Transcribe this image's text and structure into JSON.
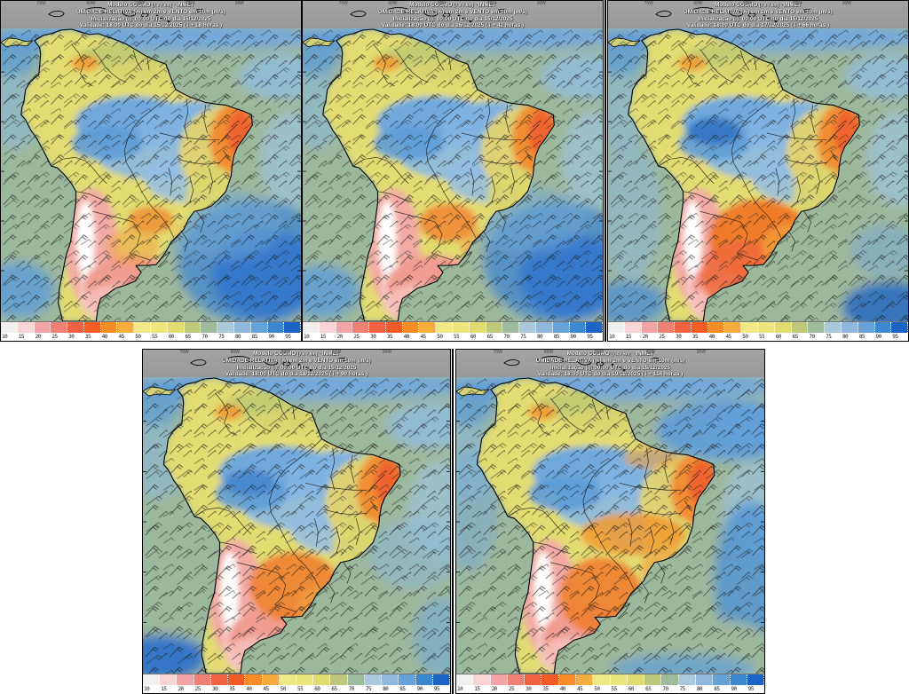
{
  "model_header": {
    "model_line_prefix": "Modelo COSMO",
    "model_line_resolution": "[7 x 7 km]",
    "model_line_suffix": "- INMET",
    "variable_line": "UMIDADE RELATIVA (%) em 2m e VENTO em 10m (m/s)",
    "initialization_line": "Inicialização (i): 00:00 UTC do dia 15/12/2025"
  },
  "panels": [
    {
      "id": "panel-1",
      "validity_line": "Validade: 18:00 UTC do dia 15/12/2025 ( i + 18 horas )",
      "valid_date": "15/12/2025",
      "valid_time_utc": "18:00",
      "lead_hours": 18,
      "variant": "v1"
    },
    {
      "id": "panel-2",
      "validity_line": "Validade: 18:00 UTC do dia 16/12/2025 ( i + 42 horas )",
      "valid_date": "16/12/2025",
      "valid_time_utc": "18:00",
      "lead_hours": 42,
      "variant": "v2"
    },
    {
      "id": "panel-3",
      "validity_line": "Validade: 18:00 UTC do dia 17/12/2025 ( i + 66 horas )",
      "valid_date": "17/12/2025",
      "valid_time_utc": "18:00",
      "lead_hours": 66,
      "variant": "v3"
    },
    {
      "id": "panel-4",
      "validity_line": "Validade: 18:00 UTC do dia 18/12/2025 ( i + 90 horas )",
      "valid_date": "18/12/2025",
      "valid_time_utc": "18:00",
      "lead_hours": 90,
      "variant": "v4"
    },
    {
      "id": "panel-5",
      "validity_line": "Validade: 18:00 UTC do dia 19/12/2025 ( i + 114 horas )",
      "valid_date": "19/12/2025",
      "valid_time_utc": "18:00",
      "lead_hours": 114,
      "variant": "v5"
    }
  ],
  "colorbar": {
    "unit": "%",
    "ticks": [
      "10",
      "15",
      "20",
      "25",
      "30",
      "35",
      "40",
      "45",
      "50",
      "55",
      "60",
      "65",
      "70",
      "75",
      "80",
      "85",
      "90",
      "95"
    ],
    "colors": [
      "#f0f0ee",
      "#f8d4d6",
      "#f2a4a6",
      "#ef8074",
      "#f16242",
      "#f45c26",
      "#f98e28",
      "#f5ae3e",
      "#f0e886",
      "#ece67c",
      "#e0dc70",
      "#bdc87a",
      "#9dbc9e",
      "#a9c9da",
      "#8fb8dc",
      "#66a2d8",
      "#3c88d0",
      "#1b64c6"
    ]
  },
  "map_labels": {
    "longitude_ticks": [
      "70W",
      "60W",
      "50W",
      "40W",
      "30W"
    ]
  },
  "map_colors": {
    "ocean_base": "#9cb89c",
    "humid_blue": "#6fa8dc",
    "very_humid_navy": "#1a55b8",
    "land_base_yellow": "#e2dc72",
    "dry_orange": "#f08530",
    "very_dry_red": "#ee5f30",
    "arid_white": "#ffffff",
    "arid_pink": "#f2aaa2",
    "wind_barb": "#1a1a1a"
  }
}
